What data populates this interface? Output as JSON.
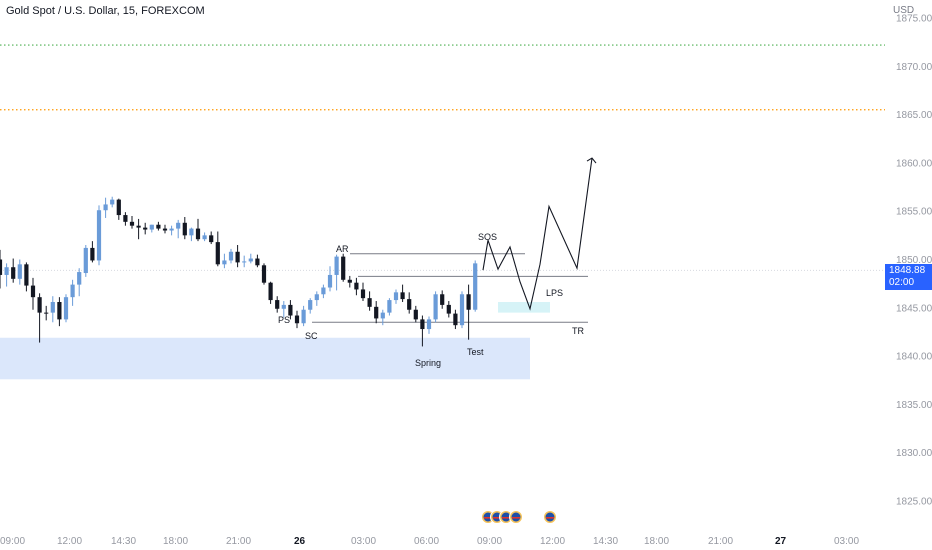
{
  "header": {
    "title": "Gold Spot / U.S. Dollar, 15, FOREXCOM",
    "currency": "USD"
  },
  "price_tag": {
    "price": "1848.88",
    "countdown": "02:00",
    "color": "#2962ff"
  },
  "colors": {
    "up_candle": "#6a9bd8",
    "down_candle": "#131722",
    "green_level": "#4caf50",
    "orange_level": "#ff9800",
    "support_zone": "#dbe7fb",
    "lps_zone": "#d6f3f7"
  },
  "chart_data": {
    "type": "candlestick",
    "y_axis": {
      "ticks": [
        "1875.00",
        "1870.00",
        "1865.00",
        "1860.00",
        "1855.00",
        "1850.00",
        "1845.00",
        "1840.00",
        "1835.00",
        "1830.00",
        "1825.00"
      ],
      "range": [
        1823.5,
        1875.8
      ]
    },
    "x_axis": {
      "ticks": [
        {
          "label": "09:00",
          "bold": false
        },
        {
          "label": "12:00",
          "bold": false
        },
        {
          "label": "14:30",
          "bold": false
        },
        {
          "label": "18:00",
          "bold": false
        },
        {
          "label": "21:00",
          "bold": false
        },
        {
          "label": "26",
          "bold": true
        },
        {
          "label": "03:00",
          "bold": false
        },
        {
          "label": "06:00",
          "bold": false
        },
        {
          "label": "09:00",
          "bold": false
        },
        {
          "label": "12:00",
          "bold": false
        },
        {
          "label": "14:30",
          "bold": false
        },
        {
          "label": "18:00",
          "bold": false
        },
        {
          "label": "21:00",
          "bold": false
        },
        {
          "label": "27",
          "bold": true
        },
        {
          "label": "03:00",
          "bold": false
        }
      ]
    },
    "levels": [
      {
        "price": 1872.2,
        "style": "dotted",
        "color": "#4caf50"
      },
      {
        "price": 1865.5,
        "style": "dotted",
        "color": "#ff9800"
      }
    ],
    "current_price": 1848.88,
    "zones": [
      {
        "from": 1837.6,
        "to": 1841.9,
        "color": "#dbe7fb"
      },
      {
        "from": 1844.5,
        "to": 1845.6,
        "color": "#d6f3f7"
      }
    ],
    "trading_range": {
      "top": 1850.6,
      "mid": 1849.6,
      "bottom": 1843.5
    },
    "wyckoff_labels": [
      "AR",
      "SOS",
      "PS",
      "SC",
      "Spring",
      "Test",
      "LPS",
      "TR"
    ],
    "projection": [
      1848.9,
      1852.0,
      1849.0,
      1851.3,
      1847.7,
      1844.9,
      1849.5,
      1855.5,
      1849.1,
      1860.5
    ],
    "candles": [
      [
        1850,
        1851,
        1847,
        1848.4
      ],
      [
        1848.4,
        1849.6,
        1847.2,
        1849.2
      ],
      [
        1849.2,
        1850.1,
        1847.6,
        1848
      ],
      [
        1848,
        1850,
        1847.4,
        1849.5
      ],
      [
        1849.5,
        1849.7,
        1846.7,
        1847.3
      ],
      [
        1847.3,
        1848.1,
        1844.8,
        1846.1
      ],
      [
        1846.1,
        1846.5,
        1841.4,
        1844.5
      ],
      [
        1844.5,
        1845.2,
        1843.7,
        1844.4
      ],
      [
        1844.5,
        1846.2,
        1843.5,
        1845.6
      ],
      [
        1845.6,
        1846.1,
        1843.1,
        1843.8
      ],
      [
        1843.8,
        1846.4,
        1843.5,
        1846.1
      ],
      [
        1846.1,
        1847.9,
        1845.2,
        1847.4
      ],
      [
        1847.4,
        1849.1,
        1846.2,
        1848.7
      ],
      [
        1848.6,
        1851.5,
        1848.2,
        1851.2
      ],
      [
        1851.2,
        1851.9,
        1849.7,
        1849.9
      ],
      [
        1849.9,
        1855.6,
        1849.4,
        1855.1
      ],
      [
        1855.1,
        1856.4,
        1854.3,
        1855.7
      ],
      [
        1855.7,
        1856.5,
        1855.4,
        1856.2
      ],
      [
        1856.2,
        1856.3,
        1854.1,
        1854.6
      ],
      [
        1854.6,
        1854.9,
        1853.5,
        1853.9
      ],
      [
        1853.9,
        1854.5,
        1853.2,
        1853.5
      ],
      [
        1853.5,
        1854.2,
        1852.1,
        1853.3
      ],
      [
        1853.3,
        1853.8,
        1852.6,
        1853.1
      ],
      [
        1853.1,
        1853.6,
        1852.8,
        1853.6
      ],
      [
        1853.6,
        1853.9,
        1853,
        1853.2
      ],
      [
        1853.2,
        1853.6,
        1852.7,
        1853
      ],
      [
        1853,
        1853.5,
        1852.5,
        1853.2
      ],
      [
        1853.2,
        1854.1,
        1852.2,
        1853.8
      ],
      [
        1853.8,
        1854.4,
        1852.1,
        1852.5
      ],
      [
        1852.5,
        1853.3,
        1851.9,
        1853.2
      ],
      [
        1853.2,
        1854.2,
        1851.9,
        1852.1
      ],
      [
        1852.1,
        1852.8,
        1851.9,
        1852.5
      ],
      [
        1852.5,
        1852.9,
        1851.6,
        1851.8
      ],
      [
        1851.8,
        1852.9,
        1849.3,
        1849.5
      ],
      [
        1849.5,
        1850.6,
        1849.1,
        1849.9
      ],
      [
        1849.9,
        1851.1,
        1849.6,
        1850.8
      ],
      [
        1850.8,
        1851.5,
        1849.2,
        1849.7
      ],
      [
        1849.7,
        1850.4,
        1849.2,
        1849.8
      ],
      [
        1849.8,
        1850.6,
        1849.6,
        1850.1
      ],
      [
        1850.1,
        1850.5,
        1849.2,
        1849.4
      ],
      [
        1849.4,
        1849.6,
        1847.4,
        1847.6
      ],
      [
        1847.6,
        1847.7,
        1845.4,
        1845.8
      ],
      [
        1845.8,
        1846.2,
        1844.5,
        1844.9
      ],
      [
        1844.9,
        1845.7,
        1844,
        1845.3
      ],
      [
        1845.3,
        1845.8,
        1843.8,
        1844.2
      ],
      [
        1844.2,
        1844.7,
        1842.9,
        1843.4
      ],
      [
        1843.4,
        1845.2,
        1843.1,
        1844.8
      ],
      [
        1844.8,
        1846,
        1844.4,
        1845.8
      ],
      [
        1845.8,
        1846.7,
        1845.2,
        1846.4
      ],
      [
        1846.4,
        1847.4,
        1846,
        1847.1
      ],
      [
        1847.1,
        1849.3,
        1846.7,
        1848.4
      ],
      [
        1848.4,
        1850.5,
        1846.8,
        1850.3
      ],
      [
        1850.3,
        1850.6,
        1847.7,
        1847.9
      ],
      [
        1847.9,
        1848.3,
        1847.1,
        1847.6
      ],
      [
        1847.6,
        1848.1,
        1846.3,
        1846.9
      ],
      [
        1846.9,
        1847.6,
        1845.7,
        1846
      ],
      [
        1846,
        1846.7,
        1844.7,
        1845.1
      ],
      [
        1845.1,
        1845.7,
        1843.4,
        1843.9
      ],
      [
        1843.9,
        1844.8,
        1843.2,
        1844.5
      ],
      [
        1844.5,
        1846,
        1844.2,
        1845.8
      ],
      [
        1845.8,
        1846.9,
        1845.4,
        1846.6
      ],
      [
        1846.6,
        1847.4,
        1845.6,
        1845.9
      ],
      [
        1845.9,
        1846.6,
        1844.4,
        1844.8
      ],
      [
        1844.8,
        1845.2,
        1843.5,
        1843.8
      ],
      [
        1843.8,
        1844.2,
        1841,
        1842.8
      ],
      [
        1842.8,
        1844.1,
        1842.3,
        1843.8
      ],
      [
        1843.8,
        1846.7,
        1843.5,
        1846.4
      ],
      [
        1846.4,
        1846.8,
        1844.9,
        1845.3
      ],
      [
        1845.3,
        1845.7,
        1844,
        1844.4
      ],
      [
        1844.4,
        1844.8,
        1842.8,
        1843.2
      ],
      [
        1843.2,
        1846.7,
        1842.9,
        1846.4
      ],
      [
        1846.4,
        1847.4,
        1841.7,
        1844.8
      ],
      [
        1844.8,
        1849.9,
        1844.6,
        1849.6
      ]
    ]
  }
}
